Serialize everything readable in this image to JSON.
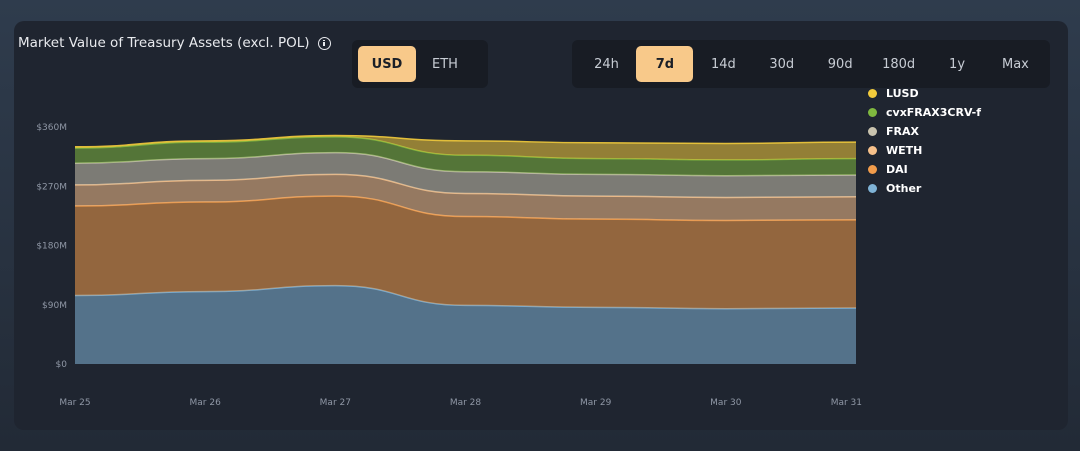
{
  "header": {
    "title": "Market Value of Treasury Assets (excl. POL)",
    "info_icon": "info-icon"
  },
  "currency_toggle": {
    "options": [
      "USD",
      "ETH"
    ],
    "selected": "USD"
  },
  "range_toggle": {
    "options": [
      "24h",
      "7d",
      "14d",
      "30d",
      "90d",
      "180d",
      "1y",
      "Max"
    ],
    "selected": "7d"
  },
  "colors": {
    "Other": "#7fb3d6",
    "DAI": "#f29c4b",
    "WETH": "#f6c08a",
    "FRAX": "#c9c3ae",
    "cvxFRAX3CRV-f": "#7fb83f",
    "LUSD": "#f2cb3c"
  },
  "chart_data": {
    "type": "area",
    "stacked": true,
    "x": [
      "Mar 25",
      "Mar 26",
      "Mar 27",
      "Mar 28",
      "Mar 29",
      "Mar 30",
      "Mar 31"
    ],
    "y_ticks": [
      "$0",
      "$90M",
      "$180M",
      "$270M",
      "$360M"
    ],
    "ylim": [
      0,
      360
    ],
    "ylabel": "",
    "xlabel": "",
    "grid": false,
    "legend_position": "right",
    "series": [
      {
        "name": "Other",
        "values": [
          104,
          110,
          119,
          89,
          86,
          84,
          85
        ]
      },
      {
        "name": "DAI",
        "values": [
          136,
          136,
          136,
          135,
          134,
          134,
          134
        ]
      },
      {
        "name": "WETH",
        "values": [
          32,
          33,
          33,
          35,
          35,
          35,
          35
        ]
      },
      {
        "name": "FRAX",
        "values": [
          33,
          33,
          33,
          33,
          33,
          33,
          33
        ]
      },
      {
        "name": "cvxFRAX3CRV-f",
        "values": [
          23,
          25,
          24,
          25,
          24,
          24,
          25
        ]
      },
      {
        "name": "LUSD",
        "values": [
          2,
          2,
          2,
          22,
          24,
          25,
          25
        ]
      }
    ]
  }
}
